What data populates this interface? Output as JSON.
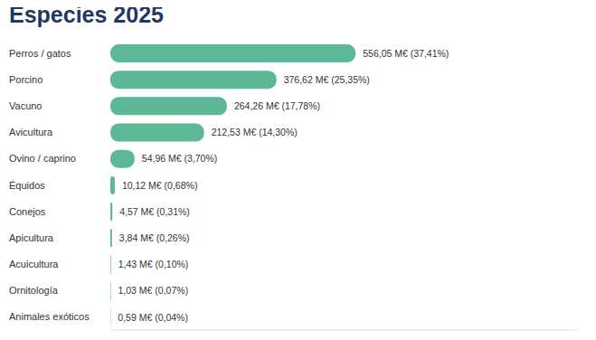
{
  "chart_data": {
    "type": "bar",
    "title": "Especies 2025",
    "orientation": "horizontal",
    "categories": [
      "Perros / gatos",
      "Porcino",
      "Vacuno",
      "Avicultura",
      "Ovino / caprino",
      "Équidos",
      "Conejos",
      "Apicultura",
      "Acuicultura",
      "Ornitología",
      "Animales exóticos"
    ],
    "values": [
      556.05,
      376.62,
      264.26,
      212.53,
      54.96,
      10.12,
      4.57,
      3.84,
      1.43,
      1.03,
      0.59
    ],
    "value_labels": [
      "556,05 M€ (37,41%)",
      "376,62 M€ (25,35%)",
      "264,26 M€ (17,78%)",
      "212,53 M€ (14,30%)",
      "54,96 M€ (3,70%)",
      "10,12 M€ (0,68%)",
      "4,57 M€ (0,31%)",
      "3,84 M€ (0,26%)",
      "1,43 M€ (0,10%)",
      "1,03 M€ (0,07%)",
      "0,59 M€ (0,04%)"
    ],
    "color": "#5cb895",
    "xlim": [
      0,
      1060
    ],
    "data_labels": true,
    "tick_labels": "y",
    "grid": false
  }
}
